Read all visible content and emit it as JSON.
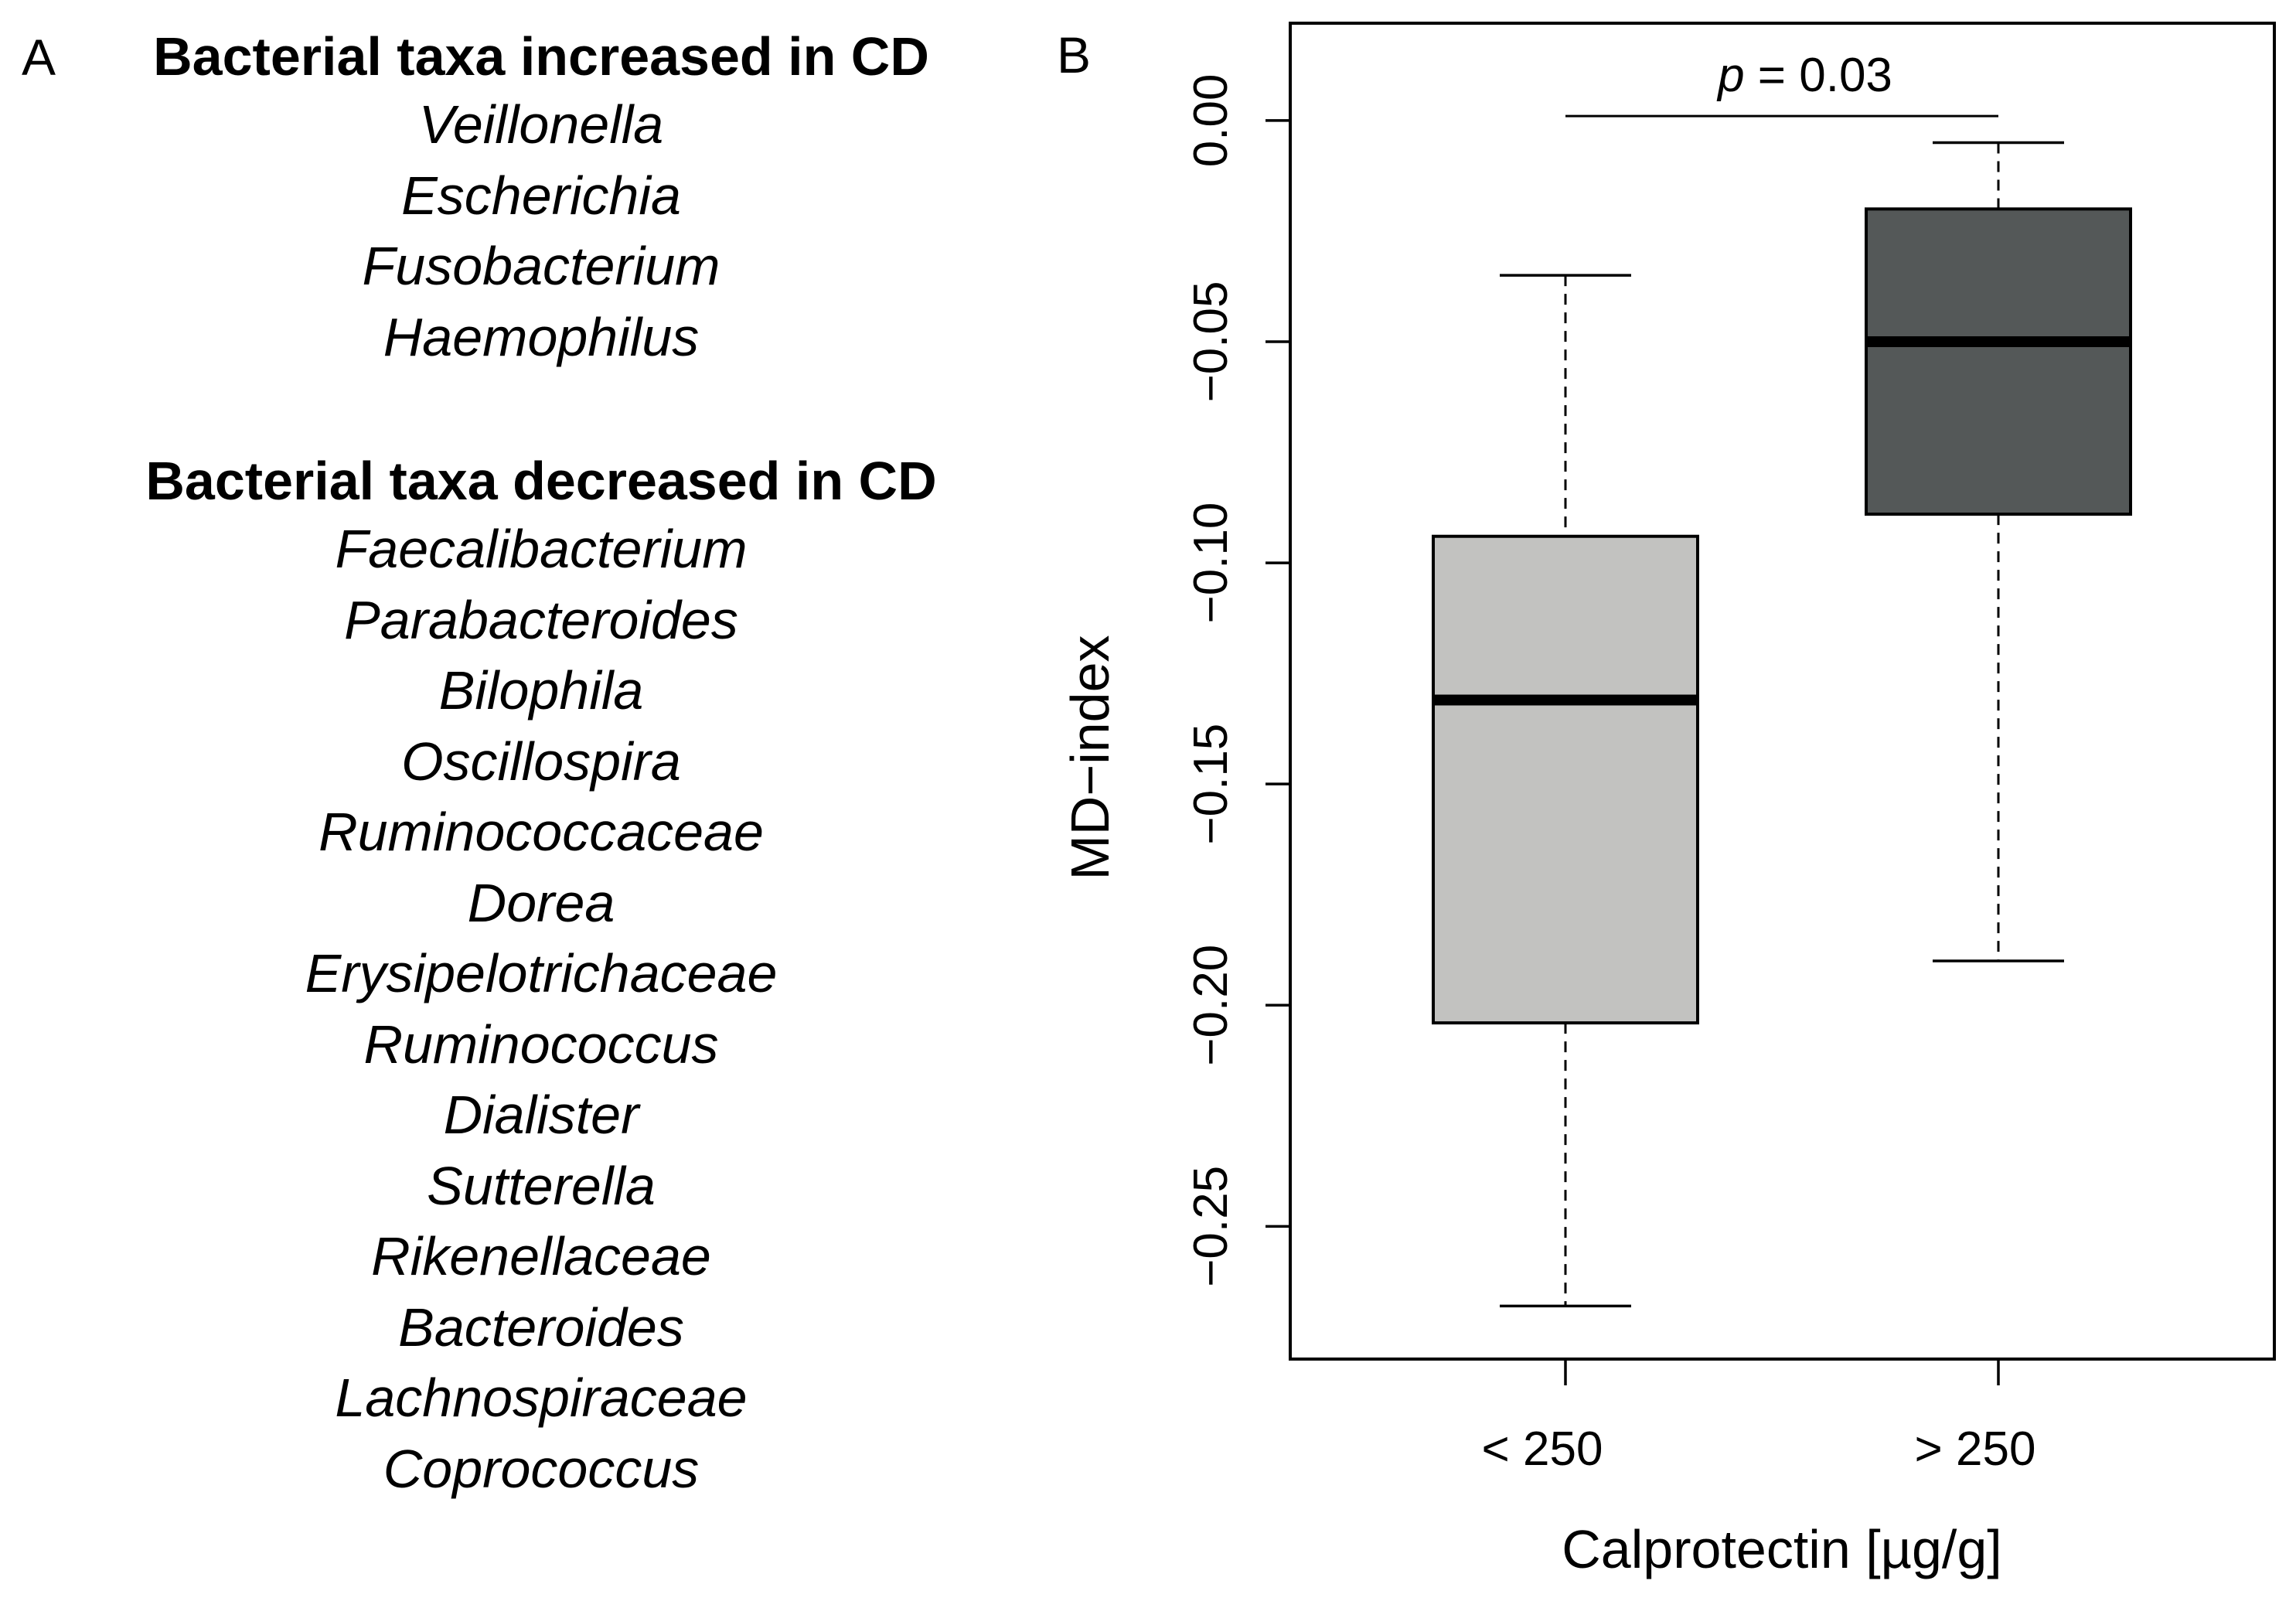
{
  "panel_a": {
    "label": "A",
    "increased_heading": "Bacterial taxa increased in CD",
    "increased_taxa": [
      "Veillonella",
      "Escherichia",
      "Fusobacterium",
      "Haemophilus"
    ],
    "decreased_heading": "Bacterial taxa decreased in CD",
    "decreased_taxa": [
      "Faecalibacterium",
      "Parabacteroides",
      "Bilophila",
      "Oscillospira",
      "Ruminococcaceae",
      "Dorea",
      "Erysipelotrichaceae",
      "Ruminococcus",
      "Dialister",
      "Sutterella",
      "Rikenellaceae",
      "Bacteroides",
      "Lachnospiraceae",
      "Coprococcus"
    ]
  },
  "chart_data": {
    "type": "boxplot",
    "panel_label": "B",
    "xlabel": "Calprotectin [µg/g]",
    "ylabel": "MD−index",
    "ylim": [
      -0.28,
      0.022
    ],
    "yticks": [
      0.0,
      -0.05,
      -0.1,
      -0.15,
      -0.2,
      -0.25
    ],
    "ytick_labels": [
      "0.00",
      "−0.05",
      "−0.10",
      "−0.15",
      "−0.20",
      "−0.25"
    ],
    "categories": [
      "< 250",
      "> 250"
    ],
    "boxes": [
      {
        "category": "< 250",
        "whisker_low": -0.268,
        "q1": -0.204,
        "median": -0.131,
        "q3": -0.094,
        "whisker_high": -0.035,
        "color": "#c2c2c0"
      },
      {
        "category": "> 250",
        "whisker_low": -0.19,
        "q1": -0.089,
        "median": -0.05,
        "q3": -0.02,
        "whisker_high": -0.005,
        "color": "#545858"
      }
    ],
    "annotation": {
      "p_symbol": "p",
      "text": " = 0.03",
      "y": 0.001
    },
    "grid": false,
    "legend": "none"
  }
}
